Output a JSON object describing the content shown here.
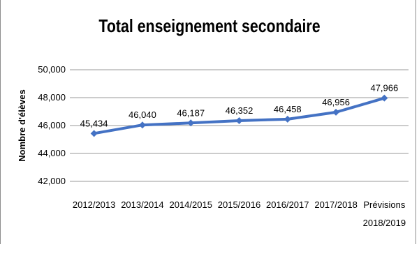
{
  "chart_data": {
    "type": "line",
    "title": "Total enseignement secondaire",
    "ylabel": "Nombre d'élèves",
    "xlabel": "",
    "categories": [
      [
        "2012/2013"
      ],
      [
        "2013/2014"
      ],
      [
        "2014/2015"
      ],
      [
        "2015/2016"
      ],
      [
        "2016/2017"
      ],
      [
        "2017/2018"
      ],
      [
        "Prévisions",
        "2018/2019"
      ]
    ],
    "series": [
      {
        "values": [
          45434,
          46040,
          46187,
          46352,
          46458,
          46956,
          47966
        ],
        "labels": [
          "45,434",
          "46,040",
          "46,187",
          "46,352",
          "46,458",
          "46,956",
          "47,966"
        ],
        "color": "#4472C4",
        "marker": "diamond"
      }
    ],
    "ylim": [
      42000,
      50000
    ],
    "yticks": [
      42000,
      44000,
      46000,
      48000,
      50000
    ],
    "ytick_labels": [
      "42,000",
      "44,000",
      "46,000",
      "48,000",
      "50,000"
    ],
    "grid": true,
    "legend": "none"
  }
}
